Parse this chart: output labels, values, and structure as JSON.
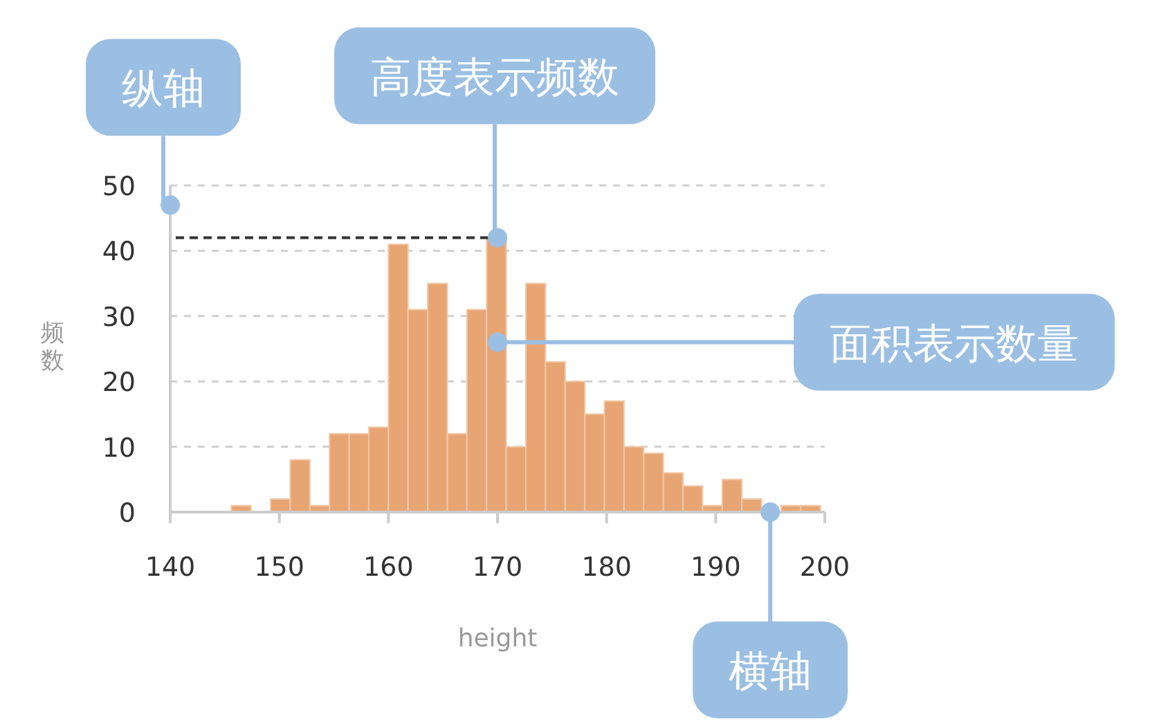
{
  "chart_data": {
    "type": "histogram",
    "xlabel": "height",
    "ylabel": "频数",
    "bins": [
      140.2,
      142,
      143.8,
      145.6,
      147.4,
      149.2,
      151,
      152.8,
      154.6,
      156.4,
      158.2,
      160,
      161.8,
      163.6,
      165.4,
      167.2,
      169,
      170.8,
      172.6,
      174.4,
      176.2,
      178,
      179.8,
      181.6,
      183.4,
      185.2,
      187,
      188.8,
      190.6,
      192.4,
      194.2,
      196,
      197.8,
      199.6
    ],
    "values": [
      0,
      0,
      0,
      1,
      0,
      2,
      8,
      1,
      12,
      12,
      13,
      41,
      31,
      35,
      12,
      31,
      42,
      10,
      35,
      23,
      20,
      15,
      17,
      10,
      9,
      6,
      4,
      1,
      5,
      2,
      null,
      1,
      1
    ],
    "color": "#e8a574",
    "xlim": [
      140,
      200
    ],
    "xticks": [
      140,
      150,
      160,
      170,
      180,
      190,
      200
    ],
    "ylim": [
      0,
      50
    ],
    "yticks": [
      0,
      10,
      20,
      30,
      40,
      50
    ],
    "grid": "y",
    "ref_lines": [
      {
        "axis": "y",
        "value": 42,
        "line_style": "dashed",
        "color": "#333333"
      }
    ],
    "annotations": [
      {
        "text": "纵轴",
        "x": 140,
        "y": 47
      },
      {
        "text": "高度表示频数",
        "x": 170,
        "y": 42
      },
      {
        "text": "面积表示数量",
        "x": 170,
        "y": 26
      },
      {
        "text": "横轴",
        "x": 195,
        "y": 0
      }
    ]
  }
}
